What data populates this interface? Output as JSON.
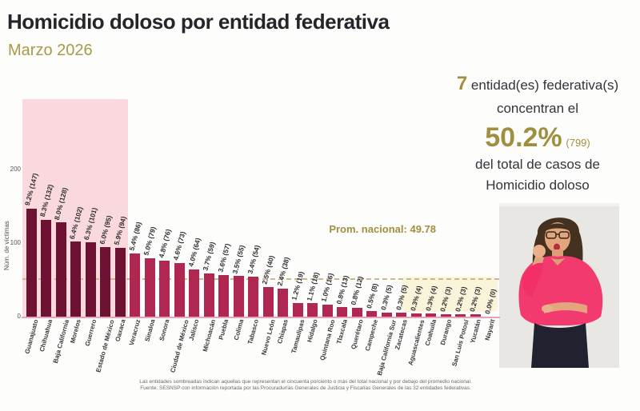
{
  "header": {
    "title": "Homicidio doloso por entidad federativa",
    "subtitle": "Marzo 2026"
  },
  "summary": {
    "count": "7",
    "count_suffix": " entidad(es) federativa(s)",
    "line2": "concentran el",
    "percent": "50.2%",
    "percent_abs": "(799)",
    "line4": "del total de casos de",
    "line5": "Homicidio doloso"
  },
  "chart_data": {
    "type": "bar",
    "title": "Homicidio doloso por entidad federativa",
    "subtitle": "Marzo 2026",
    "ylabel": "Núm. de víctimas",
    "yticks": [
      0,
      100,
      200
    ],
    "ylim": [
      0,
      295
    ],
    "grid": false,
    "legend": false,
    "national_average": 49.78,
    "avg_label": "Prom. nacional: 49.78",
    "highlighted_count": 7,
    "highlight_note": "first 7 bars dark on pink band",
    "categories": [
      "Guanajuato",
      "Chihuahua",
      "Baja California",
      "Morelos",
      "Guerrero",
      "Estado de México",
      "Oaxaca",
      "Veracruz",
      "Sinaloa",
      "Sonora",
      "Ciudad de México",
      "Jalisco",
      "Michoacán",
      "Puebla",
      "Colima",
      "Tabasco",
      "Nuevo León",
      "Chiapas",
      "Tamaulipas",
      "Hidalgo",
      "Quintana Roo",
      "Tlaxcala",
      "Querétaro",
      "Campeche",
      "Baja California Sur",
      "Zacatecas",
      "Aguascalientes",
      "Coahuila",
      "Durango",
      "San Luis Potosí",
      "Yucatán",
      "Nayarit"
    ],
    "values": [
      147,
      132,
      128,
      102,
      101,
      95,
      94,
      86,
      79,
      76,
      73,
      64,
      59,
      57,
      55,
      54,
      40,
      38,
      19,
      18,
      16,
      13,
      12,
      8,
      5,
      5,
      4,
      4,
      3,
      3,
      3,
      0
    ],
    "bar_labels": [
      "9.2% (147)",
      "8.3% (132)",
      "8.0% (128)",
      "6.4% (102)",
      "6.3% (101)",
      "6.0% (95)",
      "5.9% (94)",
      "5.4% (86)",
      "5.0% (79)",
      "4.8% (76)",
      "4.6% (73)",
      "4.0% (64)",
      "3.7% (59)",
      "3.6% (57)",
      "3.5% (55)",
      "3.4% (54)",
      "2.5% (40)",
      "2.4% (38)",
      "1.2% (19)",
      "1.1% (18)",
      "1.0% (16)",
      "0.8% (13)",
      "0.8% (12)",
      "0.5% (8)",
      "0.3% (5)",
      "0.3% (5)",
      "0.3% (4)",
      "0.3% (4)",
      "0.2% (3)",
      "0.2% (3)",
      "0.2% (3)",
      "0.0% (0)"
    ]
  },
  "footnote": {
    "line1": "Las entidades sombreadas indican aquellas que representan el cincuenta porciento o más del total nacional y por debajo del promedio nacional.",
    "line2": "Fuente: SESNSP con información reportada por las Procuradurías Generales de Justicia y Fiscalías Generales de las 32 entidades federativas."
  },
  "colors": {
    "title_text": "#26262a",
    "accent_gold": "#a18f41",
    "bar_dark": "#6e1233",
    "bar_light": "#b02852",
    "band_pink": "#f9d9de",
    "baseline_pink": "#e8a2b5",
    "avg_line": "#c6b98c",
    "cream_box": "#faf4da",
    "label_text": "#2f2f33",
    "footnote_text": "#6a6a6a",
    "interpreter_shirt": "#f33a6e"
  },
  "interpreter": {
    "description": "sign-language interpreter, pink blouse, glasses"
  }
}
